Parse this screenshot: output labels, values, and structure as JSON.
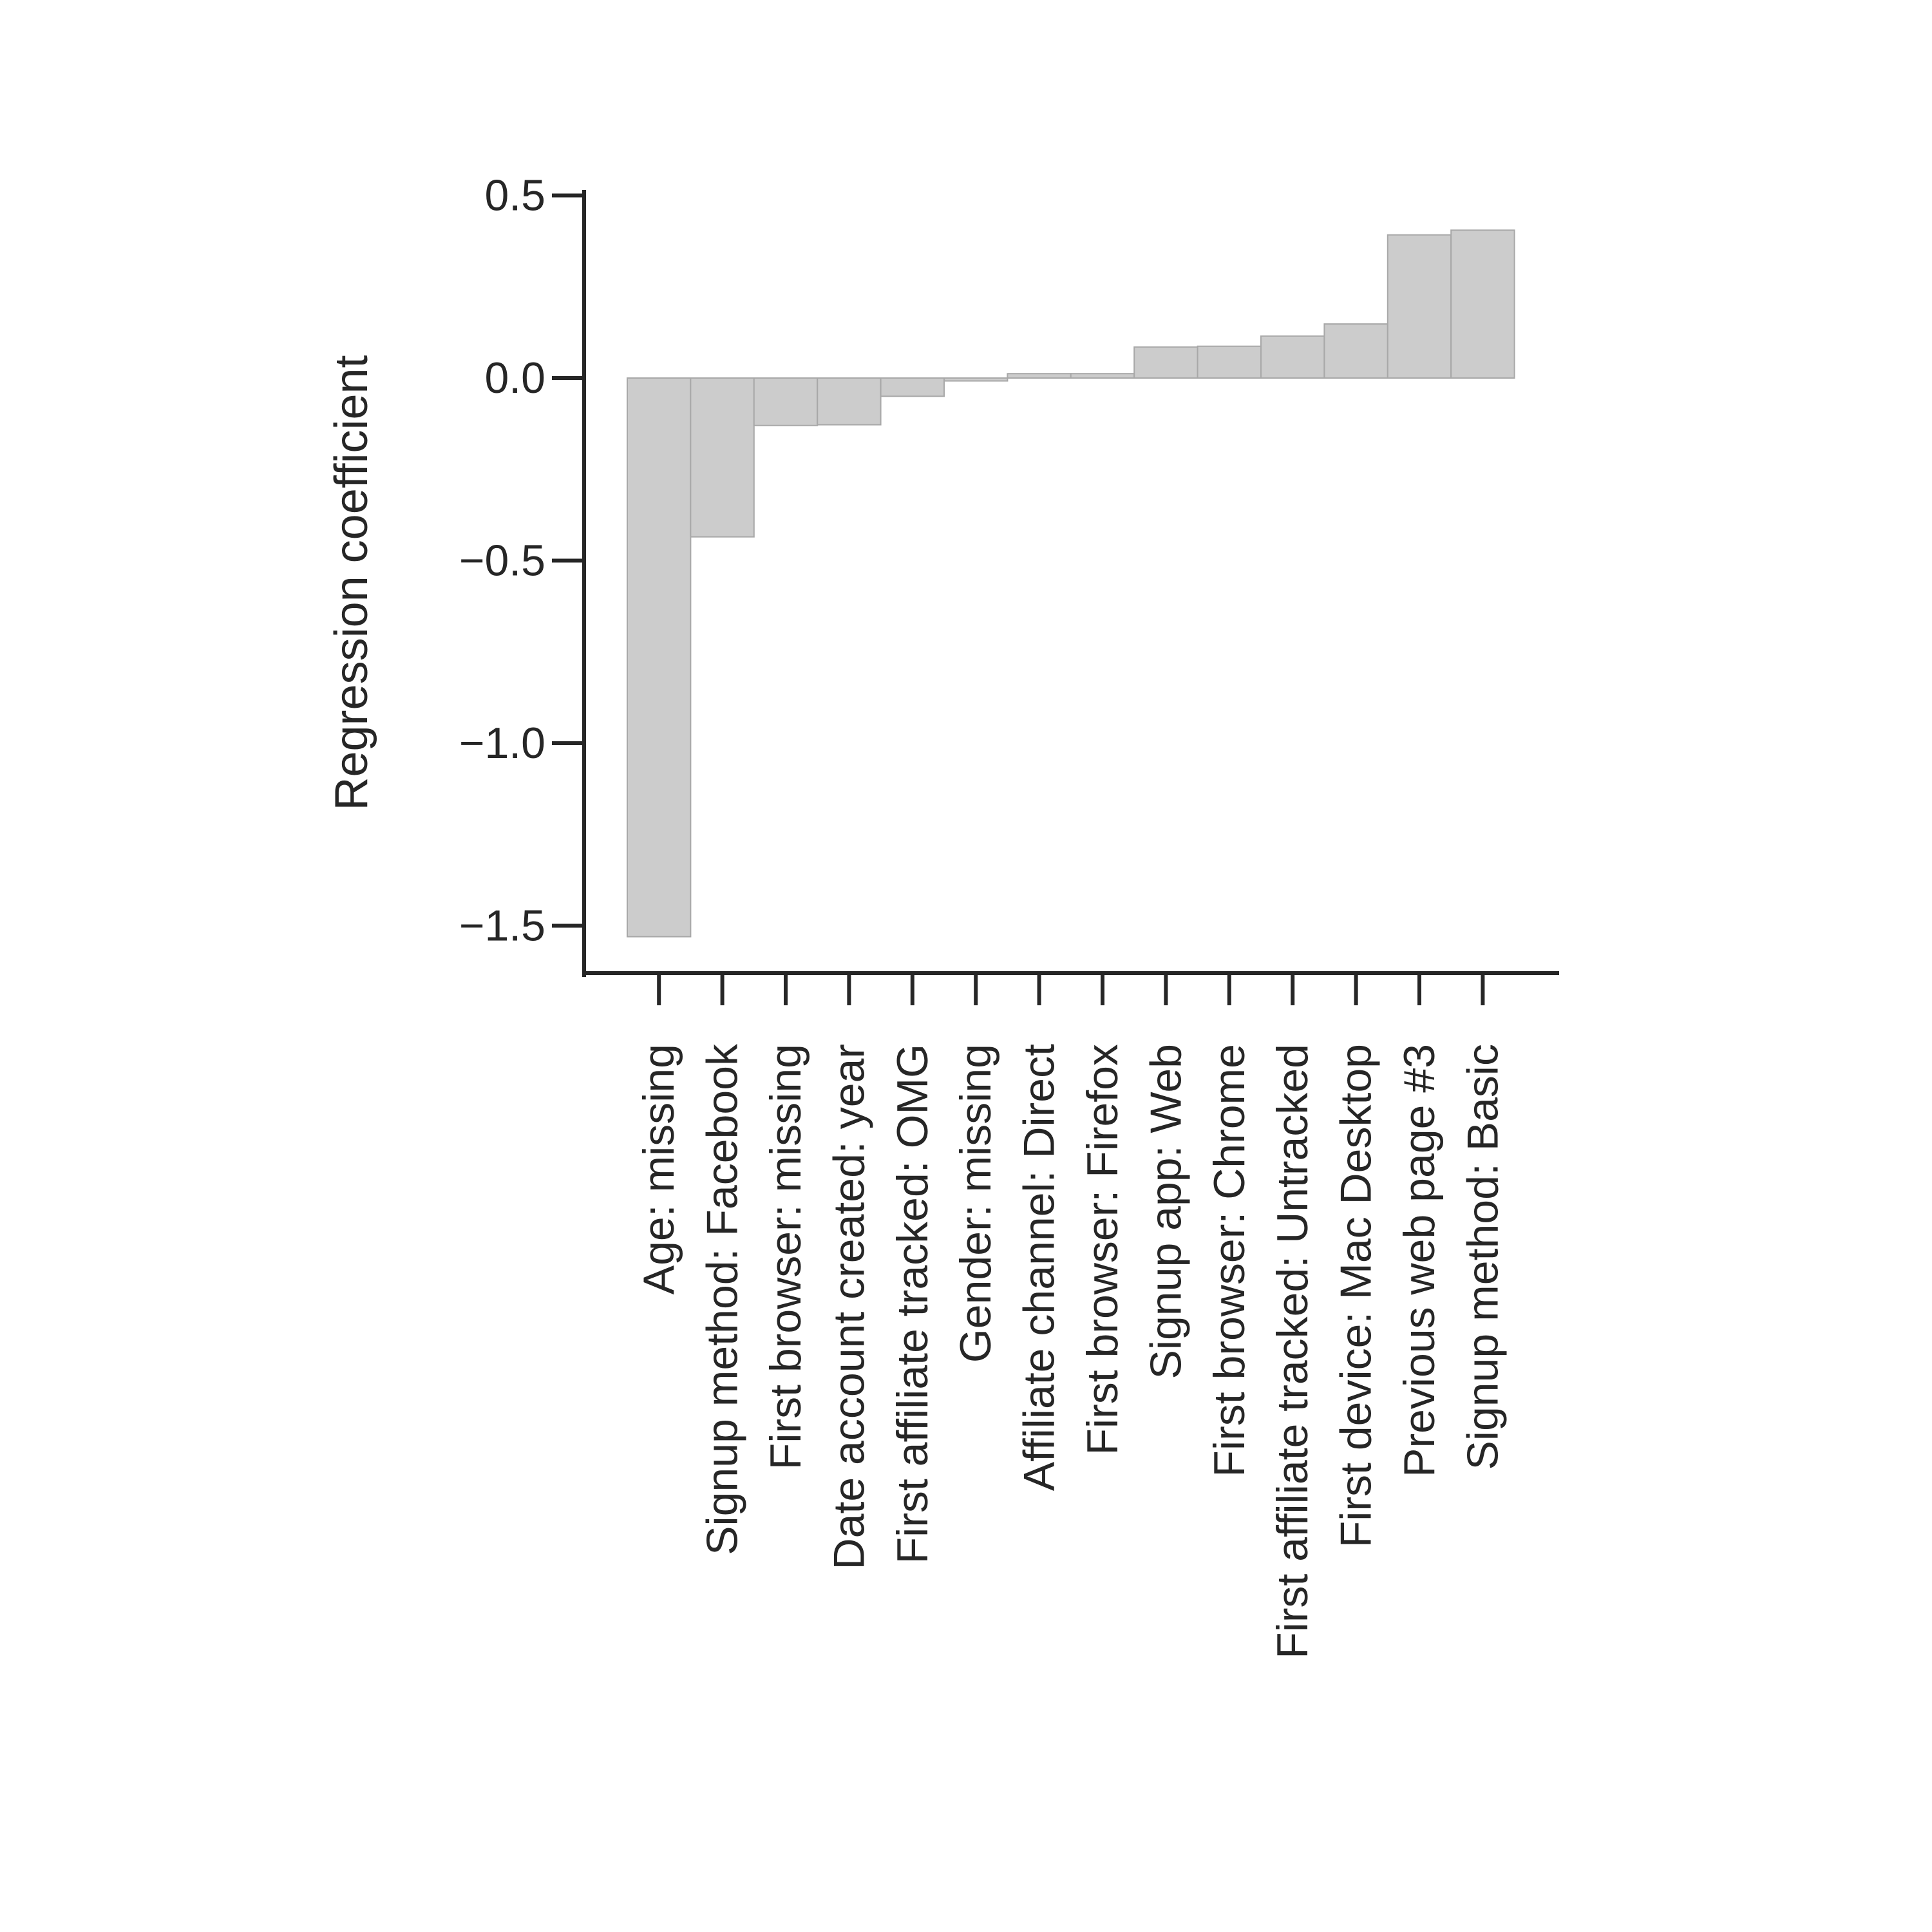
{
  "chart_data": {
    "type": "bar",
    "title": "",
    "xlabel": "",
    "ylabel": "Regression coefficient",
    "ylim": [
      -1.63,
      0.5
    ],
    "yticks": [
      0.5,
      0.0,
      -0.5,
      -1.0,
      -1.5
    ],
    "ytick_labels": [
      "0.5",
      "0.0",
      "−0.5",
      "−1.0",
      "−1.5"
    ],
    "categories": [
      "Age: missing",
      "Signup method: Facebook",
      "First browser: missing",
      "Date account created: year",
      "First affiliate tracked: OMG",
      "Gender: missing",
      "Affiliate channel: Direct",
      "First browser: Firefox",
      "Signup app: Web",
      "First browser: Chrome",
      "First affiliate tracked: Untracked",
      "First device: Mac Desktop",
      "Previous web page #3",
      "Signup method: Basic"
    ],
    "values": [
      -1.53,
      -0.435,
      -0.13,
      -0.128,
      -0.05,
      -0.008,
      0.012,
      0.012,
      0.085,
      0.087,
      0.115,
      0.148,
      0.392,
      0.405
    ],
    "colors": {
      "bar_fill": "#cccccc",
      "bar_edge": "#a8a8a8",
      "axis": "#262626"
    },
    "grid": false,
    "legend": "none"
  }
}
